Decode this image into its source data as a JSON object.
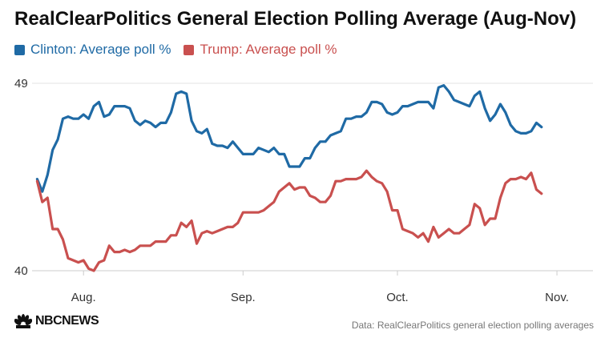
{
  "title": "RealClearPolitics General Election Polling Average (Aug-Nov)",
  "colors": {
    "clinton": "#1f6aa5",
    "trump": "#c9504f",
    "grid": "#e3e3e3",
    "axis": "#cccccc"
  },
  "legend": {
    "clinton_label": "Clinton: Average poll %",
    "trump_label": "Trump: Average poll %"
  },
  "footer": {
    "logo_text": "NBCNEWS",
    "source": "Data: RealClearPolitics general election polling averages"
  },
  "chart_data": {
    "type": "line",
    "xlabel": "",
    "ylabel": "",
    "ylim": [
      40,
      49
    ],
    "yticks": [
      40,
      49
    ],
    "xlim": [
      "2016-07-22",
      "2016-11-08"
    ],
    "xticks": [
      {
        "date": "2016-08-01",
        "label": "Aug."
      },
      {
        "date": "2016-09-01",
        "label": "Sep."
      },
      {
        "date": "2016-10-01",
        "label": "Oct."
      },
      {
        "date": "2016-11-01",
        "label": "Nov."
      }
    ],
    "grid": "horizontal",
    "legend_position": "top-left",
    "series": [
      {
        "name": "Clinton: Average poll %",
        "color": "#1f6aa5",
        "points": [
          [
            "2016-07-23",
            44.4
          ],
          [
            "2016-07-24",
            43.8
          ],
          [
            "2016-07-25",
            44.6
          ],
          [
            "2016-07-26",
            45.8
          ],
          [
            "2016-07-27",
            46.3
          ],
          [
            "2016-07-28",
            47.3
          ],
          [
            "2016-07-29",
            47.4
          ],
          [
            "2016-07-30",
            47.3
          ],
          [
            "2016-07-31",
            47.3
          ],
          [
            "2016-08-01",
            47.5
          ],
          [
            "2016-08-02",
            47.3
          ],
          [
            "2016-08-03",
            47.9
          ],
          [
            "2016-08-04",
            48.1
          ],
          [
            "2016-08-05",
            47.4
          ],
          [
            "2016-08-06",
            47.5
          ],
          [
            "2016-08-07",
            47.9
          ],
          [
            "2016-08-08",
            47.9
          ],
          [
            "2016-08-09",
            47.9
          ],
          [
            "2016-08-10",
            47.8
          ],
          [
            "2016-08-11",
            47.2
          ],
          [
            "2016-08-12",
            47.0
          ],
          [
            "2016-08-13",
            47.2
          ],
          [
            "2016-08-14",
            47.1
          ],
          [
            "2016-08-15",
            46.9
          ],
          [
            "2016-08-16",
            47.1
          ],
          [
            "2016-08-17",
            47.1
          ],
          [
            "2016-08-18",
            47.6
          ],
          [
            "2016-08-19",
            48.5
          ],
          [
            "2016-08-20",
            48.6
          ],
          [
            "2016-08-21",
            48.5
          ],
          [
            "2016-08-22",
            47.2
          ],
          [
            "2016-08-23",
            46.7
          ],
          [
            "2016-08-24",
            46.6
          ],
          [
            "2016-08-25",
            46.8
          ],
          [
            "2016-08-26",
            46.1
          ],
          [
            "2016-08-27",
            46.0
          ],
          [
            "2016-08-28",
            46.0
          ],
          [
            "2016-08-29",
            45.9
          ],
          [
            "2016-08-30",
            46.2
          ],
          [
            "2016-08-31",
            45.9
          ],
          [
            "2016-09-01",
            45.6
          ],
          [
            "2016-09-02",
            45.6
          ],
          [
            "2016-09-03",
            45.6
          ],
          [
            "2016-09-04",
            45.9
          ],
          [
            "2016-09-05",
            45.8
          ],
          [
            "2016-09-06",
            45.7
          ],
          [
            "2016-09-07",
            45.9
          ],
          [
            "2016-09-08",
            45.6
          ],
          [
            "2016-09-09",
            45.6
          ],
          [
            "2016-09-10",
            45.0
          ],
          [
            "2016-09-11",
            45.0
          ],
          [
            "2016-09-12",
            45.0
          ],
          [
            "2016-09-13",
            45.4
          ],
          [
            "2016-09-14",
            45.4
          ],
          [
            "2016-09-15",
            45.9
          ],
          [
            "2016-09-16",
            46.2
          ],
          [
            "2016-09-17",
            46.2
          ],
          [
            "2016-09-18",
            46.5
          ],
          [
            "2016-09-19",
            46.6
          ],
          [
            "2016-09-20",
            46.7
          ],
          [
            "2016-09-21",
            47.3
          ],
          [
            "2016-09-22",
            47.3
          ],
          [
            "2016-09-23",
            47.4
          ],
          [
            "2016-09-24",
            47.4
          ],
          [
            "2016-09-25",
            47.6
          ],
          [
            "2016-09-26",
            48.1
          ],
          [
            "2016-09-27",
            48.1
          ],
          [
            "2016-09-28",
            48.0
          ],
          [
            "2016-09-29",
            47.6
          ],
          [
            "2016-09-30",
            47.5
          ],
          [
            "2016-10-01",
            47.6
          ],
          [
            "2016-10-02",
            47.9
          ],
          [
            "2016-10-03",
            47.9
          ],
          [
            "2016-10-04",
            48.0
          ],
          [
            "2016-10-05",
            48.1
          ],
          [
            "2016-10-06",
            48.1
          ],
          [
            "2016-10-07",
            48.1
          ],
          [
            "2016-10-08",
            47.8
          ],
          [
            "2016-10-09",
            48.8
          ],
          [
            "2016-10-10",
            48.9
          ],
          [
            "2016-10-11",
            48.6
          ],
          [
            "2016-10-12",
            48.2
          ],
          [
            "2016-10-13",
            48.1
          ],
          [
            "2016-10-14",
            48.0
          ],
          [
            "2016-10-15",
            47.9
          ],
          [
            "2016-10-16",
            48.4
          ],
          [
            "2016-10-17",
            48.6
          ],
          [
            "2016-10-18",
            47.8
          ],
          [
            "2016-10-19",
            47.2
          ],
          [
            "2016-10-20",
            47.5
          ],
          [
            "2016-10-21",
            48.0
          ],
          [
            "2016-10-22",
            47.6
          ],
          [
            "2016-10-23",
            47.0
          ],
          [
            "2016-10-24",
            46.7
          ],
          [
            "2016-10-25",
            46.6
          ],
          [
            "2016-10-26",
            46.6
          ],
          [
            "2016-10-27",
            46.7
          ],
          [
            "2016-10-28",
            47.1
          ],
          [
            "2016-10-29",
            46.9
          ]
        ]
      },
      {
        "name": "Trump: Average poll %",
        "color": "#c9504f",
        "points": [
          [
            "2016-07-23",
            44.3
          ],
          [
            "2016-07-24",
            43.3
          ],
          [
            "2016-07-25",
            43.5
          ],
          [
            "2016-07-26",
            42.0
          ],
          [
            "2016-07-27",
            42.0
          ],
          [
            "2016-07-28",
            41.5
          ],
          [
            "2016-07-29",
            40.6
          ],
          [
            "2016-07-30",
            40.5
          ],
          [
            "2016-07-31",
            40.4
          ],
          [
            "2016-08-01",
            40.5
          ],
          [
            "2016-08-02",
            40.1
          ],
          [
            "2016-08-03",
            40.0
          ],
          [
            "2016-08-04",
            40.4
          ],
          [
            "2016-08-05",
            40.5
          ],
          [
            "2016-08-06",
            41.2
          ],
          [
            "2016-08-07",
            40.9
          ],
          [
            "2016-08-08",
            40.9
          ],
          [
            "2016-08-09",
            41.0
          ],
          [
            "2016-08-10",
            40.9
          ],
          [
            "2016-08-11",
            41.0
          ],
          [
            "2016-08-12",
            41.2
          ],
          [
            "2016-08-13",
            41.2
          ],
          [
            "2016-08-14",
            41.2
          ],
          [
            "2016-08-15",
            41.4
          ],
          [
            "2016-08-16",
            41.4
          ],
          [
            "2016-08-17",
            41.4
          ],
          [
            "2016-08-18",
            41.7
          ],
          [
            "2016-08-19",
            41.7
          ],
          [
            "2016-08-20",
            42.3
          ],
          [
            "2016-08-21",
            42.1
          ],
          [
            "2016-08-22",
            42.4
          ],
          [
            "2016-08-23",
            41.3
          ],
          [
            "2016-08-24",
            41.8
          ],
          [
            "2016-08-25",
            41.9
          ],
          [
            "2016-08-26",
            41.8
          ],
          [
            "2016-08-27",
            41.9
          ],
          [
            "2016-08-28",
            42.0
          ],
          [
            "2016-08-29",
            42.1
          ],
          [
            "2016-08-30",
            42.1
          ],
          [
            "2016-08-31",
            42.3
          ],
          [
            "2016-09-01",
            42.8
          ],
          [
            "2016-09-02",
            42.8
          ],
          [
            "2016-09-03",
            42.8
          ],
          [
            "2016-09-04",
            42.8
          ],
          [
            "2016-09-05",
            42.9
          ],
          [
            "2016-09-06",
            43.1
          ],
          [
            "2016-09-07",
            43.3
          ],
          [
            "2016-09-08",
            43.8
          ],
          [
            "2016-09-09",
            44.0
          ],
          [
            "2016-09-10",
            44.2
          ],
          [
            "2016-09-11",
            43.9
          ],
          [
            "2016-09-12",
            44.0
          ],
          [
            "2016-09-13",
            44.0
          ],
          [
            "2016-09-14",
            43.6
          ],
          [
            "2016-09-15",
            43.5
          ],
          [
            "2016-09-16",
            43.3
          ],
          [
            "2016-09-17",
            43.3
          ],
          [
            "2016-09-18",
            43.6
          ],
          [
            "2016-09-19",
            44.3
          ],
          [
            "2016-09-20",
            44.3
          ],
          [
            "2016-09-21",
            44.4
          ],
          [
            "2016-09-22",
            44.4
          ],
          [
            "2016-09-23",
            44.4
          ],
          [
            "2016-09-24",
            44.5
          ],
          [
            "2016-09-25",
            44.8
          ],
          [
            "2016-09-26",
            44.5
          ],
          [
            "2016-09-27",
            44.3
          ],
          [
            "2016-09-28",
            44.2
          ],
          [
            "2016-09-29",
            43.8
          ],
          [
            "2016-09-30",
            42.9
          ],
          [
            "2016-10-01",
            42.9
          ],
          [
            "2016-10-02",
            42.0
          ],
          [
            "2016-10-03",
            41.9
          ],
          [
            "2016-10-04",
            41.8
          ],
          [
            "2016-10-05",
            41.6
          ],
          [
            "2016-10-06",
            41.8
          ],
          [
            "2016-10-07",
            41.4
          ],
          [
            "2016-10-08",
            42.1
          ],
          [
            "2016-10-09",
            41.6
          ],
          [
            "2016-10-10",
            41.8
          ],
          [
            "2016-10-11",
            42.0
          ],
          [
            "2016-10-12",
            41.8
          ],
          [
            "2016-10-13",
            41.8
          ],
          [
            "2016-10-14",
            42.0
          ],
          [
            "2016-10-15",
            42.2
          ],
          [
            "2016-10-16",
            43.2
          ],
          [
            "2016-10-17",
            43.0
          ],
          [
            "2016-10-18",
            42.2
          ],
          [
            "2016-10-19",
            42.5
          ],
          [
            "2016-10-20",
            42.5
          ],
          [
            "2016-10-21",
            43.5
          ],
          [
            "2016-10-22",
            44.2
          ],
          [
            "2016-10-23",
            44.4
          ],
          [
            "2016-10-24",
            44.4
          ],
          [
            "2016-10-25",
            44.5
          ],
          [
            "2016-10-26",
            44.4
          ],
          [
            "2016-10-27",
            44.7
          ],
          [
            "2016-10-28",
            43.9
          ],
          [
            "2016-10-29",
            43.7
          ]
        ]
      }
    ]
  }
}
